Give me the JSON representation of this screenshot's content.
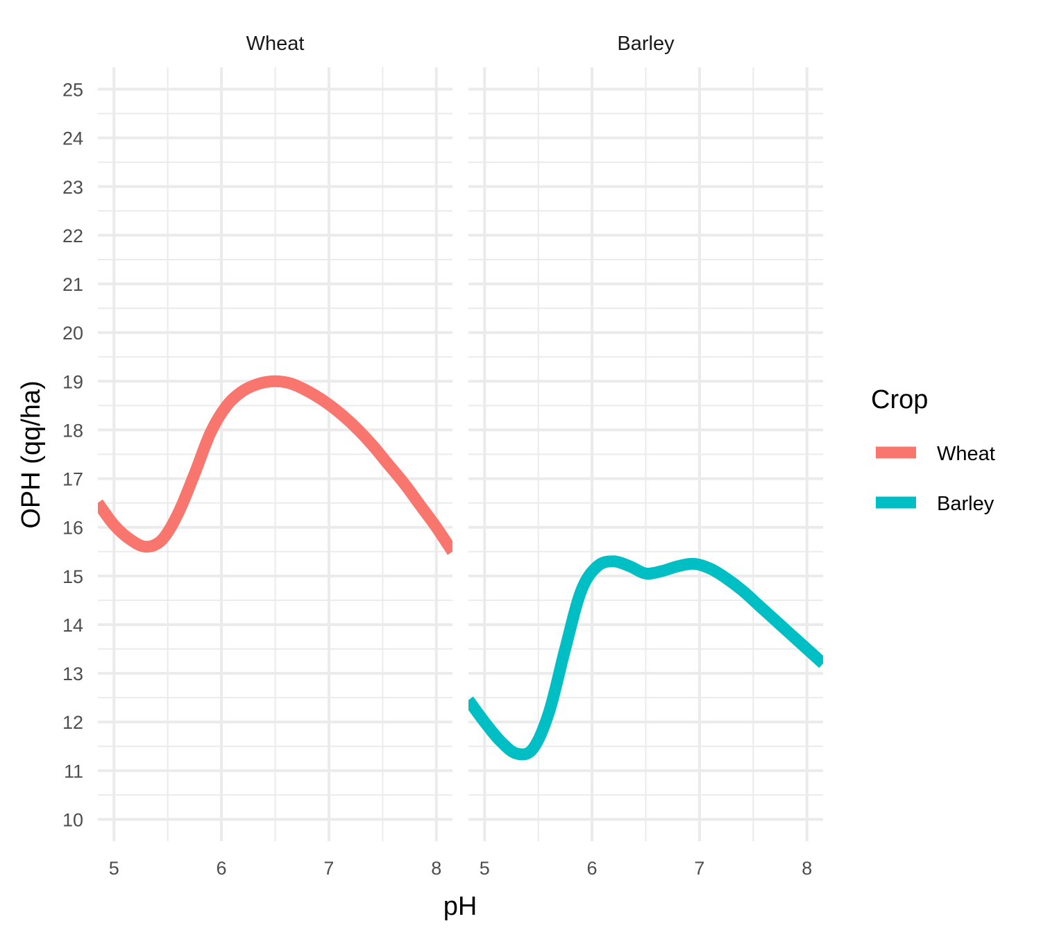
{
  "chart_data": {
    "type": "line",
    "xlabel": "pH",
    "ylabel": "OPH (qq/ha)",
    "xlim": [
      4.85,
      8.15
    ],
    "ylim": [
      9.55,
      25.45
    ],
    "x_ticks": [
      5,
      6,
      7,
      8
    ],
    "y_ticks": [
      10,
      11,
      12,
      13,
      14,
      15,
      16,
      17,
      18,
      19,
      20,
      21,
      22,
      23,
      24,
      25
    ],
    "grid": true,
    "legend": {
      "title": "Crop",
      "placement": "right",
      "entries": [
        {
          "label": "Wheat",
          "color": "#F8766D"
        },
        {
          "label": "Barley",
          "color": "#00BFC4"
        }
      ]
    },
    "facets": [
      {
        "label": "Wheat",
        "color": "#F8766D",
        "x": [
          4.85,
          5.0,
          5.15,
          5.3,
          5.45,
          5.6,
          5.75,
          5.9,
          6.05,
          6.2,
          6.35,
          6.5,
          6.65,
          6.8,
          6.95,
          7.1,
          7.25,
          7.4,
          7.55,
          7.7,
          7.85,
          8.0,
          8.15
        ],
        "y": [
          16.5,
          16.05,
          15.75,
          15.6,
          15.75,
          16.3,
          17.1,
          17.95,
          18.5,
          18.8,
          18.95,
          19.0,
          18.95,
          18.8,
          18.6,
          18.35,
          18.05,
          17.7,
          17.3,
          16.9,
          16.45,
          16.0,
          15.5
        ]
      },
      {
        "label": "Barley",
        "color": "#00BFC4",
        "x": [
          4.85,
          5.0,
          5.15,
          5.3,
          5.45,
          5.6,
          5.75,
          5.9,
          6.05,
          6.2,
          6.35,
          6.5,
          6.65,
          6.8,
          6.95,
          7.1,
          7.25,
          7.4,
          7.55,
          7.7,
          7.85,
          8.0,
          8.15
        ],
        "y": [
          12.45,
          12.0,
          11.6,
          11.35,
          11.45,
          12.2,
          13.5,
          14.7,
          15.2,
          15.3,
          15.2,
          15.05,
          15.1,
          15.2,
          15.25,
          15.15,
          14.95,
          14.7,
          14.4,
          14.1,
          13.8,
          13.5,
          13.2
        ]
      }
    ]
  }
}
